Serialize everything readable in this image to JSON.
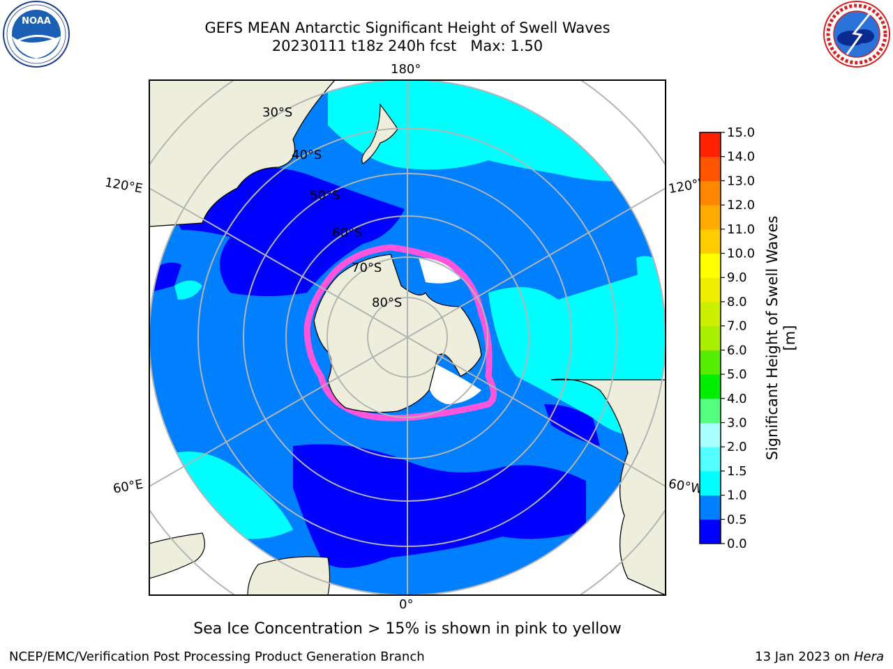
{
  "header": {
    "title_line1": "GEFS MEAN Antarctic Significant Height of Swell Waves",
    "title_line2": "20230111 t18z 240h fcst   Max: 1.50",
    "left_logo_name": "NOAA",
    "right_logo_name": "NATIONAL WEATHER SERVICE"
  },
  "map": {
    "projection": "south polar stereographic",
    "longitude_labels": {
      "top": "180°",
      "bottom": "0°",
      "upper_left": "120°E",
      "upper_right": "120°W",
      "lower_left": "60°E",
      "lower_right": "60°W"
    },
    "latitude_labels": [
      "30°S",
      "40°S",
      "50°S",
      "60°S",
      "70°S",
      "80°S"
    ],
    "colors": {
      "land": "#eeeedc",
      "sea_ice_white": "#ffffff",
      "sea_ice_pink": "#ff55dd",
      "grid": "#b4b4b4"
    }
  },
  "colorbar": {
    "label": "Significant Height of Swell Waves [m]",
    "ticks": [
      "0.0",
      "0.5",
      "1.0",
      "1.5",
      "2.0",
      "3.0",
      "4.0",
      "5.0",
      "6.0",
      "7.0",
      "8.0",
      "9.0",
      "10.0",
      "11.0",
      "12.0",
      "13.0",
      "14.0",
      "15.0"
    ],
    "colors": [
      "#0000ff",
      "#0080ff",
      "#00ffff",
      "#55ffff",
      "#aaffff",
      "#55ff80",
      "#00ee00",
      "#55ee00",
      "#aaee00",
      "#ccee00",
      "#eeee00",
      "#ffff00",
      "#ffcc00",
      "#ffaa00",
      "#ff8800",
      "#ff5500",
      "#ff2200"
    ]
  },
  "note": "Sea Ice Concentration > 15% is shown in pink to yellow",
  "footer": {
    "left": "NCEP/EMC/Verification Post Processing Product Generation Branch",
    "right_date": "13 Jan 2023 on ",
    "right_host": "Hera"
  }
}
